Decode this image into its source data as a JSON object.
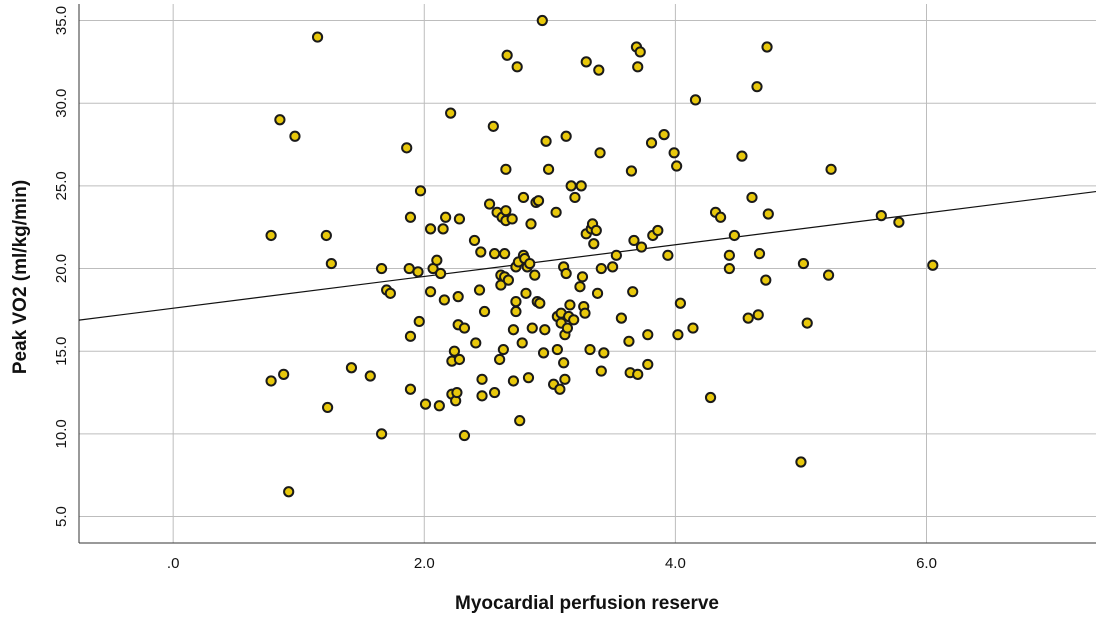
{
  "chart_data": {
    "type": "scatter",
    "xlabel": "Myocardial perfusion reserve",
    "ylabel": "Peak VO2 (ml/kg/min)",
    "xlim": [
      -0.75,
      7.35
    ],
    "ylim": [
      3.4,
      36.0
    ],
    "x_ticks": [
      0,
      2,
      4,
      6
    ],
    "x_tick_labels": [
      ".0",
      "2.0",
      "4.0",
      "6.0"
    ],
    "y_ticks": [
      5,
      10,
      15,
      20,
      25,
      30,
      35
    ],
    "y_tick_labels": [
      "5.0",
      "10.0",
      "15.0",
      "20.0",
      "25.0",
      "30.0",
      "35.0"
    ],
    "grid": true,
    "point_fill": "#e8c80b",
    "point_stroke": "#1a1a1a",
    "fit_line": {
      "intercept": 17.6,
      "slope": 0.96
    },
    "points": [
      [
        0.78,
        22.0
      ],
      [
        0.78,
        13.2
      ],
      [
        0.85,
        29.0
      ],
      [
        0.88,
        13.6
      ],
      [
        0.92,
        6.5
      ],
      [
        0.97,
        28.0
      ],
      [
        1.15,
        34.0
      ],
      [
        1.22,
        22.0
      ],
      [
        1.23,
        11.6
      ],
      [
        1.26,
        20.3
      ],
      [
        1.42,
        14.0
      ],
      [
        1.57,
        13.5
      ],
      [
        1.66,
        20.0
      ],
      [
        1.66,
        10.0
      ],
      [
        1.7,
        18.7
      ],
      [
        1.73,
        18.5
      ],
      [
        1.86,
        27.3
      ],
      [
        1.88,
        20.0
      ],
      [
        1.89,
        23.1
      ],
      [
        1.89,
        15.9
      ],
      [
        1.89,
        12.7
      ],
      [
        1.95,
        19.8
      ],
      [
        1.96,
        16.8
      ],
      [
        1.97,
        24.7
      ],
      [
        2.01,
        11.8
      ],
      [
        2.05,
        22.4
      ],
      [
        2.05,
        18.6
      ],
      [
        2.07,
        20.0
      ],
      [
        2.1,
        20.5
      ],
      [
        2.12,
        11.7
      ],
      [
        2.13,
        19.7
      ],
      [
        2.15,
        22.4
      ],
      [
        2.16,
        18.1
      ],
      [
        2.17,
        23.1
      ],
      [
        2.21,
        29.4
      ],
      [
        2.22,
        12.4
      ],
      [
        2.22,
        14.4
      ],
      [
        2.24,
        15.0
      ],
      [
        2.25,
        12.0
      ],
      [
        2.26,
        12.5
      ],
      [
        2.27,
        18.3
      ],
      [
        2.27,
        16.6
      ],
      [
        2.28,
        23.0
      ],
      [
        2.28,
        14.5
      ],
      [
        2.32,
        16.4
      ],
      [
        2.32,
        9.9
      ],
      [
        2.4,
        21.7
      ],
      [
        2.41,
        15.5
      ],
      [
        2.44,
        18.7
      ],
      [
        2.45,
        21.0
      ],
      [
        2.46,
        13.3
      ],
      [
        2.46,
        12.3
      ],
      [
        2.48,
        17.4
      ],
      [
        2.52,
        23.9
      ],
      [
        2.55,
        28.6
      ],
      [
        2.56,
        20.9
      ],
      [
        2.56,
        12.5
      ],
      [
        2.58,
        23.4
      ],
      [
        2.6,
        14.5
      ],
      [
        2.61,
        19.6
      ],
      [
        2.61,
        19.0
      ],
      [
        2.62,
        23.1
      ],
      [
        2.63,
        15.1
      ],
      [
        2.64,
        20.9
      ],
      [
        2.64,
        19.5
      ],
      [
        2.65,
        26.0
      ],
      [
        2.65,
        23.5
      ],
      [
        2.65,
        22.9
      ],
      [
        2.66,
        32.9
      ],
      [
        2.67,
        19.3
      ],
      [
        2.7,
        23.0
      ],
      [
        2.71,
        16.3
      ],
      [
        2.71,
        13.2
      ],
      [
        2.73,
        20.1
      ],
      [
        2.73,
        17.4
      ],
      [
        2.73,
        18.0
      ],
      [
        2.74,
        32.2
      ],
      [
        2.75,
        20.4
      ],
      [
        2.76,
        10.8
      ],
      [
        2.78,
        15.5
      ],
      [
        2.79,
        24.3
      ],
      [
        2.79,
        20.8
      ],
      [
        2.8,
        20.6
      ],
      [
        2.81,
        18.5
      ],
      [
        2.82,
        20.1
      ],
      [
        2.83,
        13.4
      ],
      [
        2.84,
        20.3
      ],
      [
        2.85,
        22.7
      ],
      [
        2.86,
        16.4
      ],
      [
        2.88,
        19.6
      ],
      [
        2.89,
        24.0
      ],
      [
        2.9,
        18.0
      ],
      [
        2.91,
        24.1
      ],
      [
        2.92,
        17.9
      ],
      [
        2.94,
        35.0
      ],
      [
        2.95,
        14.9
      ],
      [
        2.96,
        16.3
      ],
      [
        2.97,
        27.7
      ],
      [
        2.99,
        26.0
      ],
      [
        3.03,
        13.0
      ],
      [
        3.05,
        23.4
      ],
      [
        3.06,
        15.1
      ],
      [
        3.06,
        17.1
      ],
      [
        3.08,
        12.7
      ],
      [
        3.09,
        17.3
      ],
      [
        3.09,
        16.7
      ],
      [
        3.11,
        20.1
      ],
      [
        3.11,
        14.3
      ],
      [
        3.12,
        16.0
      ],
      [
        3.12,
        13.3
      ],
      [
        3.13,
        28.0
      ],
      [
        3.13,
        19.7
      ],
      [
        3.14,
        16.4
      ],
      [
        3.15,
        17.1
      ],
      [
        3.16,
        17.8
      ],
      [
        3.17,
        25.0
      ],
      [
        3.19,
        16.9
      ],
      [
        3.2,
        24.3
      ],
      [
        3.24,
        18.9
      ],
      [
        3.25,
        25.0
      ],
      [
        3.26,
        19.5
      ],
      [
        3.27,
        17.7
      ],
      [
        3.28,
        17.3
      ],
      [
        3.29,
        32.5
      ],
      [
        3.29,
        22.1
      ],
      [
        3.32,
        15.1
      ],
      [
        3.33,
        22.4
      ],
      [
        3.34,
        22.7
      ],
      [
        3.35,
        21.5
      ],
      [
        3.37,
        22.3
      ],
      [
        3.38,
        18.5
      ],
      [
        3.39,
        32.0
      ],
      [
        3.4,
        27.0
      ],
      [
        3.41,
        20.0
      ],
      [
        3.41,
        13.8
      ],
      [
        3.43,
        14.9
      ],
      [
        3.5,
        20.1
      ],
      [
        3.53,
        20.8
      ],
      [
        3.57,
        17.0
      ],
      [
        3.63,
        15.6
      ],
      [
        3.64,
        13.7
      ],
      [
        3.65,
        25.9
      ],
      [
        3.66,
        18.6
      ],
      [
        3.67,
        21.7
      ],
      [
        3.69,
        33.4
      ],
      [
        3.7,
        32.2
      ],
      [
        3.7,
        13.6
      ],
      [
        3.72,
        33.1
      ],
      [
        3.73,
        21.3
      ],
      [
        3.78,
        16.0
      ],
      [
        3.78,
        14.2
      ],
      [
        3.81,
        27.6
      ],
      [
        3.82,
        22.0
      ],
      [
        3.86,
        22.3
      ],
      [
        3.91,
        28.1
      ],
      [
        3.94,
        20.8
      ],
      [
        3.99,
        27.0
      ],
      [
        4.01,
        26.2
      ],
      [
        4.02,
        16.0
      ],
      [
        4.04,
        17.9
      ],
      [
        4.14,
        16.4
      ],
      [
        4.16,
        30.2
      ],
      [
        4.28,
        12.2
      ],
      [
        4.32,
        23.4
      ],
      [
        4.36,
        23.1
      ],
      [
        4.43,
        20.0
      ],
      [
        4.43,
        20.8
      ],
      [
        4.47,
        22.0
      ],
      [
        4.53,
        26.8
      ],
      [
        4.58,
        17.0
      ],
      [
        4.61,
        24.3
      ],
      [
        4.65,
        31.0
      ],
      [
        4.66,
        17.2
      ],
      [
        4.67,
        20.9
      ],
      [
        4.72,
        19.3
      ],
      [
        4.73,
        33.4
      ],
      [
        4.74,
        23.3
      ],
      [
        5.0,
        8.3
      ],
      [
        5.02,
        20.3
      ],
      [
        5.05,
        16.7
      ],
      [
        5.22,
        19.6
      ],
      [
        5.24,
        26.0
      ],
      [
        5.64,
        23.2
      ],
      [
        5.78,
        22.8
      ],
      [
        6.05,
        20.2
      ]
    ]
  }
}
